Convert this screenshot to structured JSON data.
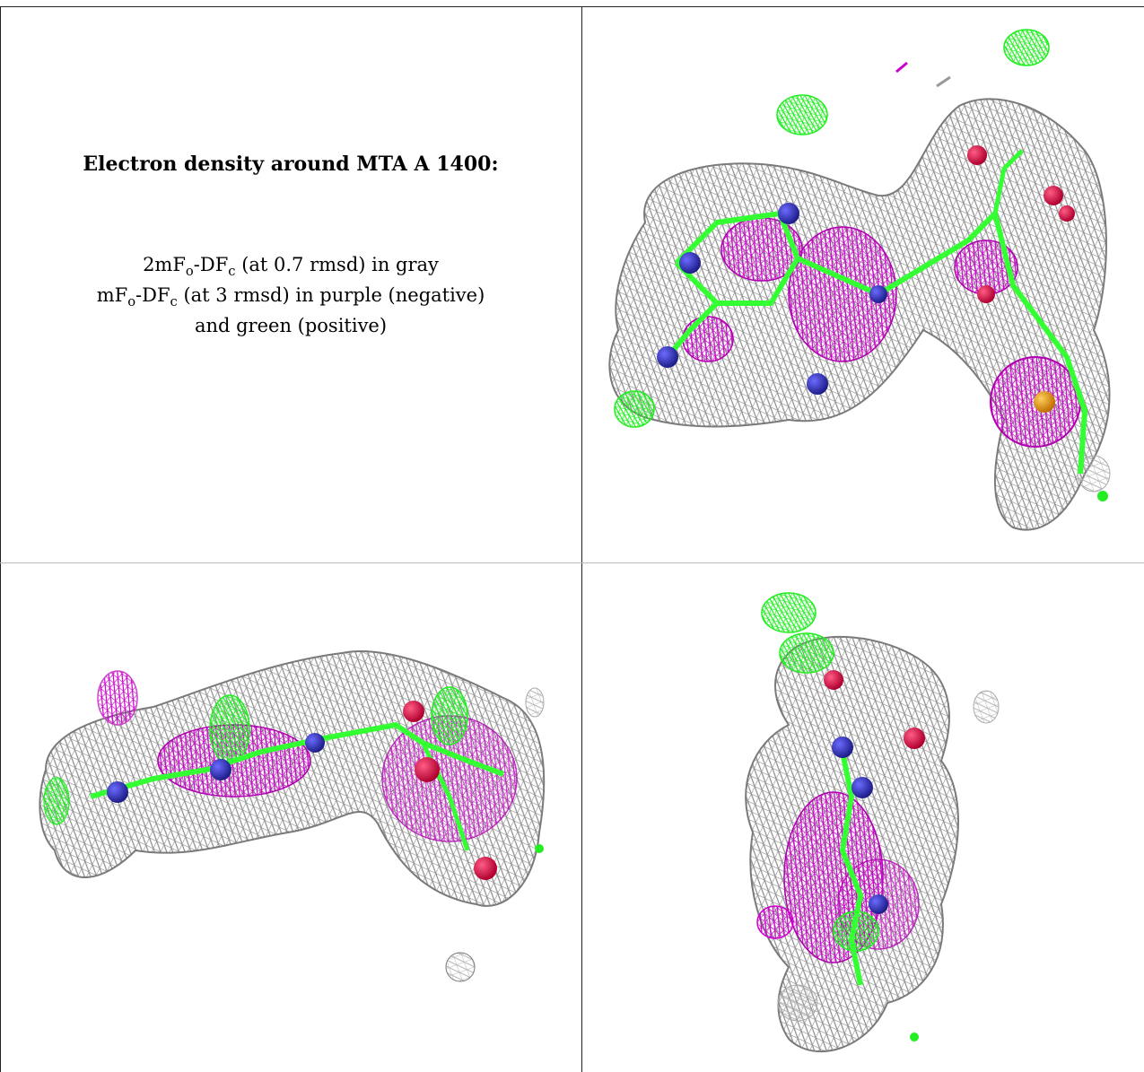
{
  "caption": {
    "title": "Electron density around MTA A 1400:",
    "line1_main": "2mF",
    "line1_sub1": "o",
    "line1_mid": "-DF",
    "line1_sub2": "c",
    "line1_tail": " (at 0.7 rmsd) in gray",
    "line2_main": "mF",
    "line2_sub1": "o",
    "line2_mid": "-DF",
    "line2_sub2": "c",
    "line2_tail": " (at 3 rmsd) in purple (negative)",
    "line3": "and green (positive)"
  },
  "colors": {
    "gray_mesh": "#8c8c8c",
    "purple_mesh": "#cc00cc",
    "green_mesh": "#22ee22",
    "carbon_green": "#33ff33",
    "nitrogen_blue": "#3333bb",
    "oxygen_red": "#e0104a",
    "sulfur_orange": "#e0a010"
  },
  "panels": [
    {
      "id": "top-right",
      "icon": "electron-density-view-1"
    },
    {
      "id": "bottom-left",
      "icon": "electron-density-view-2"
    },
    {
      "id": "bottom-right",
      "icon": "electron-density-view-3"
    }
  ]
}
